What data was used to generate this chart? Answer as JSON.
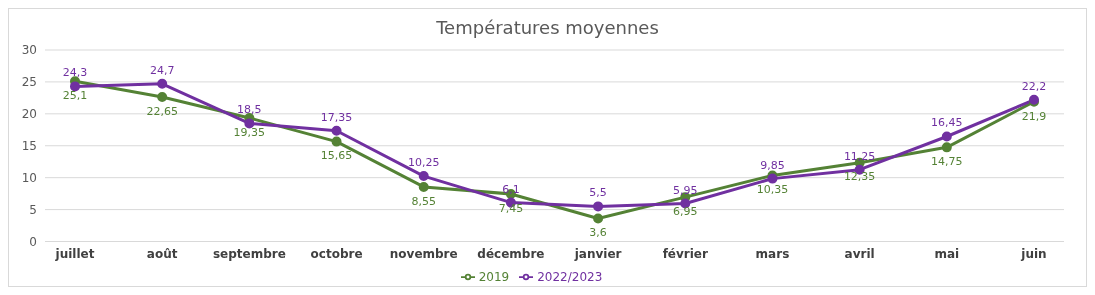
{
  "chart_data": {
    "type": "line",
    "title": "Températures moyennes",
    "categories": [
      "juillet",
      "août",
      "septembre",
      "octobre",
      "novembre",
      "décembre",
      "janvier",
      "février",
      "mars",
      "avril",
      "mai",
      "juin"
    ],
    "series": [
      {
        "name": "2019",
        "color": "#548235",
        "values": [
          25.1,
          22.65,
          19.35,
          15.65,
          8.55,
          7.45,
          3.6,
          6.95,
          10.35,
          12.35,
          14.75,
          21.9
        ],
        "value_labels": [
          "25,1",
          "22,65",
          "19,35",
          "15,65",
          "8,55",
          "7,45",
          "3,6",
          "6,95",
          "10,35",
          "12,35",
          "14,75",
          "21,9"
        ]
      },
      {
        "name": "2022/2023",
        "color": "#7030a0",
        "values": [
          24.3,
          24.7,
          18.5,
          17.35,
          10.25,
          6.1,
          5.5,
          5.95,
          9.85,
          11.25,
          16.45,
          22.2
        ],
        "value_labels": [
          "24,3",
          "24,7",
          "18,5",
          "17,35",
          "10,25",
          "6,1",
          "5,5",
          "5,95",
          "9,85",
          "11,25",
          "16,45",
          "22,2"
        ]
      }
    ],
    "ylim": [
      0,
      30
    ],
    "yticks": [
      0,
      5,
      10,
      15,
      20,
      25,
      30
    ],
    "grid": "y",
    "legend": "bottom",
    "marker": "circle",
    "line_style": "solid"
  }
}
